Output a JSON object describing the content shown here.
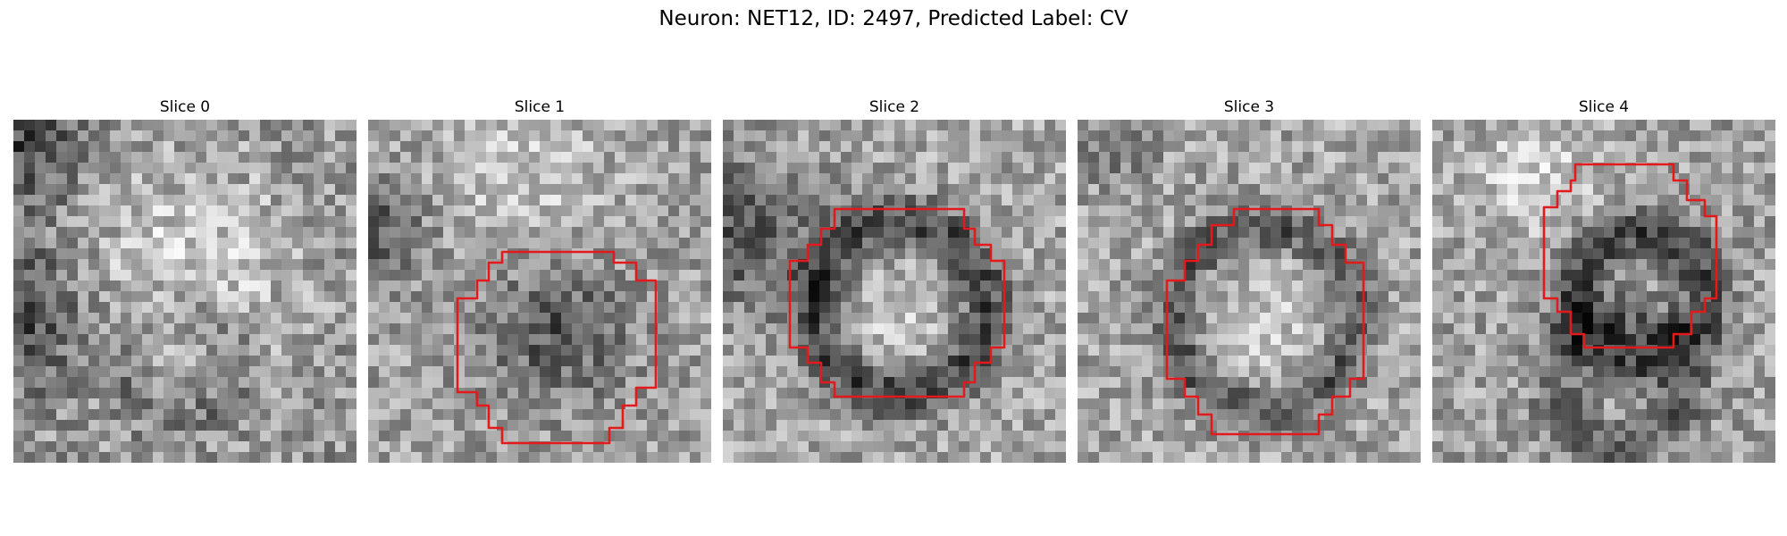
{
  "figure": {
    "title": "Neuron: NET12, ID: 2497, Predicted Label: CV"
  },
  "panels": [
    {
      "title": "Slice 0",
      "has_contour": false,
      "contour_color": "#e31a1c"
    },
    {
      "title": "Slice 1",
      "has_contour": true,
      "contour_color": "#e31a1c"
    },
    {
      "title": "Slice 2",
      "has_contour": true,
      "contour_color": "#e31a1c"
    },
    {
      "title": "Slice 3",
      "has_contour": true,
      "contour_color": "#e31a1c"
    },
    {
      "title": "Slice 4",
      "has_contour": true,
      "contour_color": "#e31a1c"
    }
  ]
}
